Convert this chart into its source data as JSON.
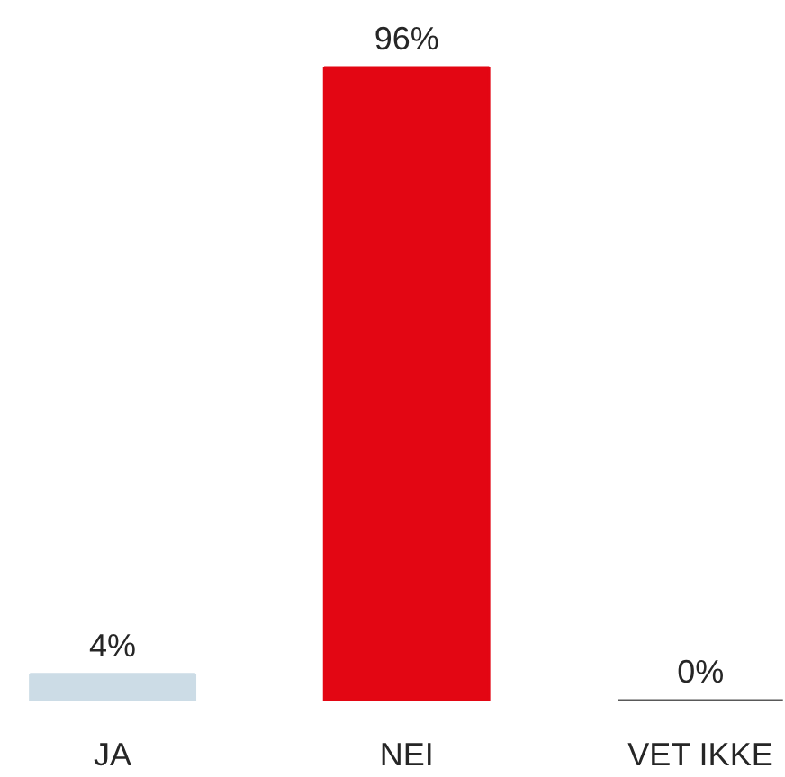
{
  "chart_data": {
    "type": "bar",
    "categories": [
      "JA",
      "NEI",
      "VET IKKE"
    ],
    "values": [
      4,
      96,
      0
    ],
    "colors": [
      "#ccdce6",
      "#e30613",
      "#595959"
    ],
    "value_labels": [
      "4%",
      "96%",
      "0%"
    ],
    "tick_labels": "x"
  }
}
